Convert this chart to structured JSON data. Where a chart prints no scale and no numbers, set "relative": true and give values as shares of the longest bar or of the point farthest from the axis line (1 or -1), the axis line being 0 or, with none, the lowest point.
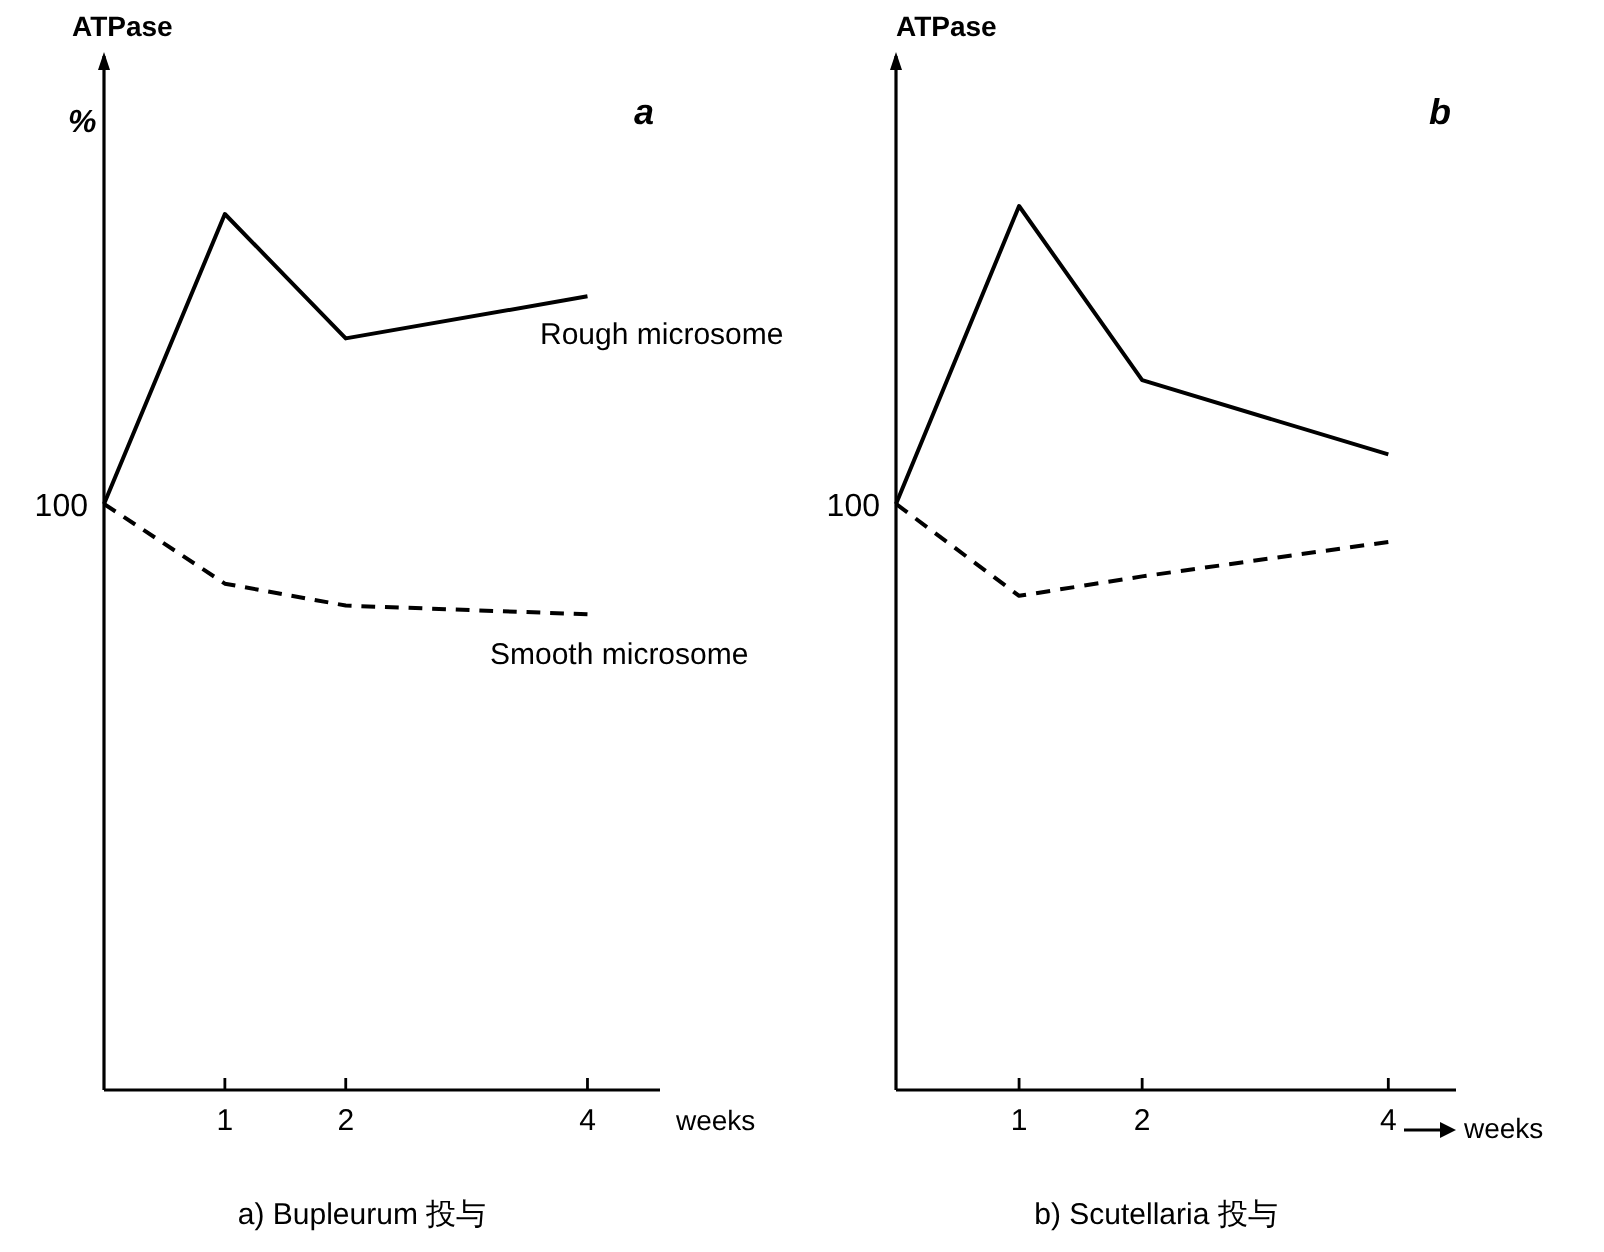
{
  "chart_data": [
    {
      "type": "line",
      "title": "a",
      "ylabel": "ATPase",
      "xlabel": "weeks",
      "relative": true,
      "x": [
        0,
        1,
        2,
        4
      ],
      "xlim": [
        0,
        4.6
      ],
      "xticks": [
        1,
        2,
        4
      ],
      "marker": "none",
      "series": [
        {
          "name": "Rough microsome",
          "color": "#000000",
          "line_style": "solid",
          "values": [
            0.669,
            1,
            0.858,
            0.906
          ]
        },
        {
          "name": "Smooth microsome",
          "color": "#000000",
          "line_style": "dashed",
          "values": [
            0.669,
            0.578,
            0.553,
            0.543
          ]
        }
      ],
      "annotations": [
        "100",
        "%",
        "a) Bupleurum 投与"
      ]
    },
    {
      "type": "line",
      "title": "b",
      "ylabel": "ATPase",
      "xlabel": "weeks",
      "relative": true,
      "x": [
        0,
        1,
        2,
        4
      ],
      "xlim": [
        0,
        4.55
      ],
      "xticks": [
        1,
        2,
        4
      ],
      "marker": "none",
      "series": [
        {
          "color": "#000000",
          "line_style": "solid",
          "values": [
            0.663,
            1,
            0.803,
            0.719
          ]
        },
        {
          "color": "#000000",
          "line_style": "dashed",
          "values": [
            0.663,
            0.559,
            0.581,
            0.62
          ]
        }
      ],
      "annotations": [
        "100",
        "b) Scutellaria 投与"
      ]
    }
  ]
}
